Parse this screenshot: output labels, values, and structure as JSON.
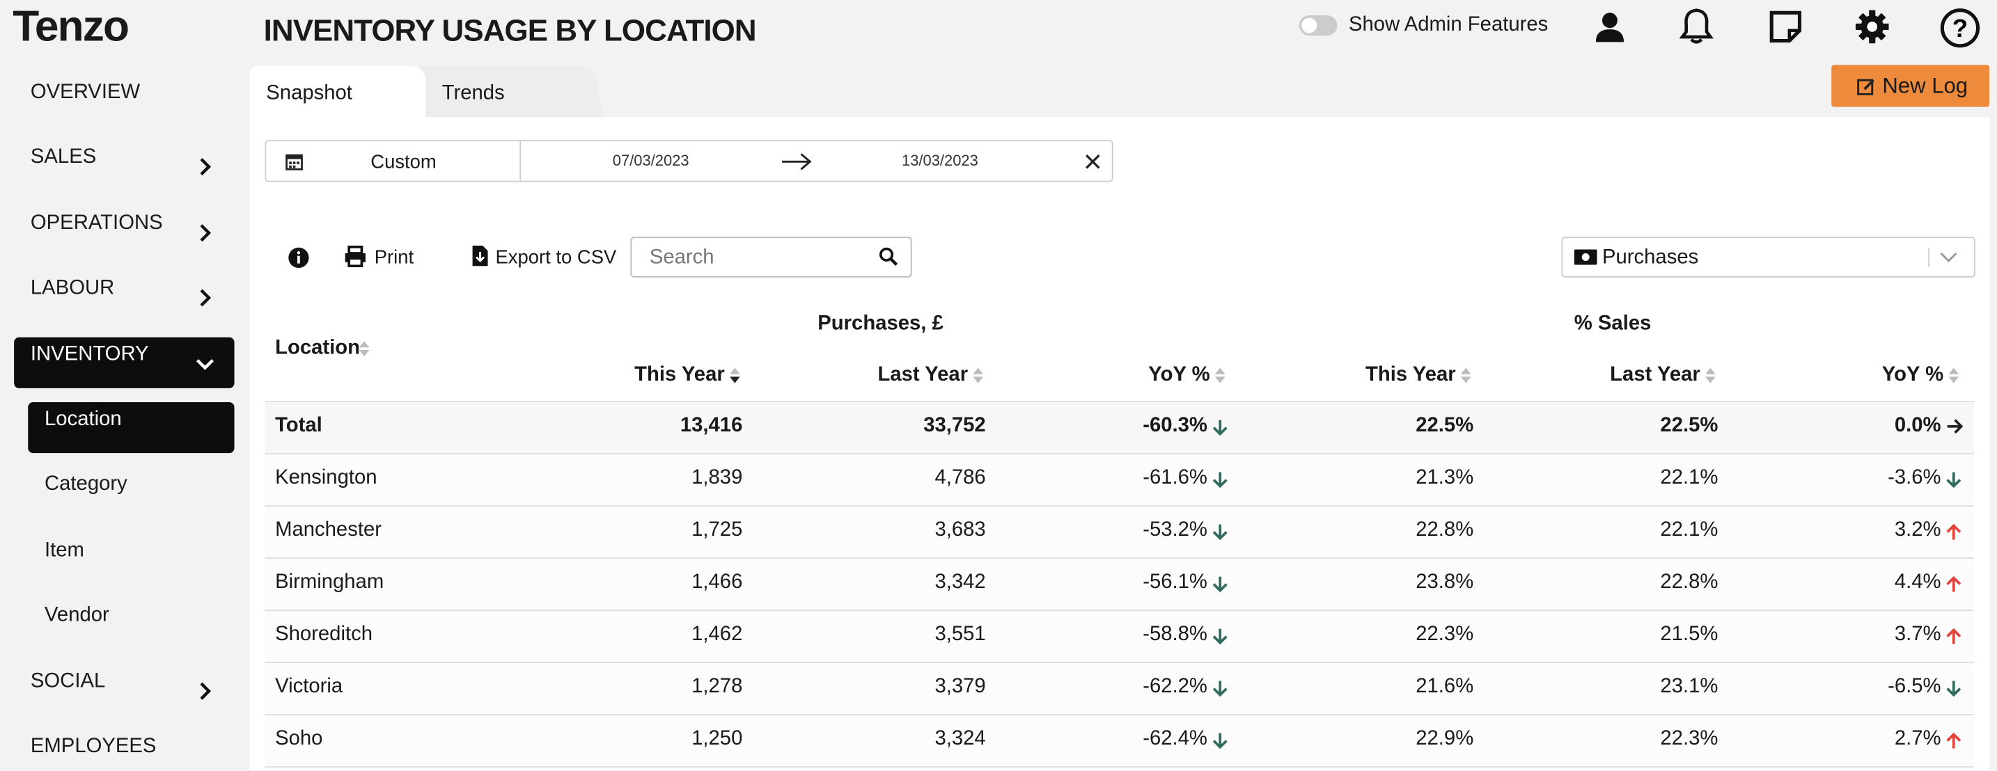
{
  "logo": "Tenzo",
  "header": {
    "title": "INVENTORY USAGE BY LOCATION",
    "admin_toggle": "Show Admin Features",
    "new_log": "New Log"
  },
  "nav": [
    {
      "label": "OVERVIEW"
    },
    {
      "label": "SALES",
      "chevron": "right"
    },
    {
      "label": "OPERATIONS",
      "chevron": "right"
    },
    {
      "label": "LABOUR",
      "chevron": "right"
    },
    {
      "label": "INVENTORY",
      "chevron": "down",
      "active": true,
      "children": [
        {
          "label": "Location",
          "active": true
        },
        {
          "label": "Category"
        },
        {
          "label": "Item"
        },
        {
          "label": "Vendor"
        }
      ]
    },
    {
      "label": "SOCIAL",
      "chevron": "right"
    },
    {
      "label": "EMPLOYEES"
    }
  ],
  "tabs": [
    "Snapshot",
    "Trends"
  ],
  "date_filter": {
    "preset": "Custom",
    "start": "07/03/2023",
    "end": "13/03/2023"
  },
  "toolbar": {
    "print": "Print",
    "export": "Export to CSV",
    "search_placeholder": "Search",
    "metric": "Purchases"
  },
  "table": {
    "location_header": "Location",
    "group_headers": [
      "Purchases, £",
      "% Sales"
    ],
    "columns": [
      "This Year",
      "Last Year",
      "YoY %",
      "This Year",
      "Last Year",
      "YoY %"
    ],
    "total": {
      "location": "Total",
      "cells": [
        "13,416",
        "33,752",
        "-60.3%",
        "22.5%",
        "22.5%",
        "0.0%"
      ],
      "trends": [
        "down",
        "flat"
      ]
    },
    "rows": [
      {
        "location": "Kensington",
        "cells": [
          "1,839",
          "4,786",
          "-61.6%",
          "21.3%",
          "22.1%",
          "-3.6%"
        ],
        "trends": [
          "down",
          "down"
        ]
      },
      {
        "location": "Manchester",
        "cells": [
          "1,725",
          "3,683",
          "-53.2%",
          "22.8%",
          "22.1%",
          "3.2%"
        ],
        "trends": [
          "down",
          "up"
        ]
      },
      {
        "location": "Birmingham",
        "cells": [
          "1,466",
          "3,342",
          "-56.1%",
          "23.8%",
          "22.8%",
          "4.4%"
        ],
        "trends": [
          "down",
          "up"
        ]
      },
      {
        "location": "Shoreditch",
        "cells": [
          "1,462",
          "3,551",
          "-58.8%",
          "22.3%",
          "21.5%",
          "3.7%"
        ],
        "trends": [
          "down",
          "up"
        ]
      },
      {
        "location": "Victoria",
        "cells": [
          "1,278",
          "3,379",
          "-62.2%",
          "21.6%",
          "23.1%",
          "-6.5%"
        ],
        "trends": [
          "down",
          "down"
        ]
      },
      {
        "location": "Soho",
        "cells": [
          "1,250",
          "3,324",
          "-62.4%",
          "22.9%",
          "22.3%",
          "2.7%"
        ],
        "trends": [
          "down",
          "up"
        ]
      }
    ]
  }
}
